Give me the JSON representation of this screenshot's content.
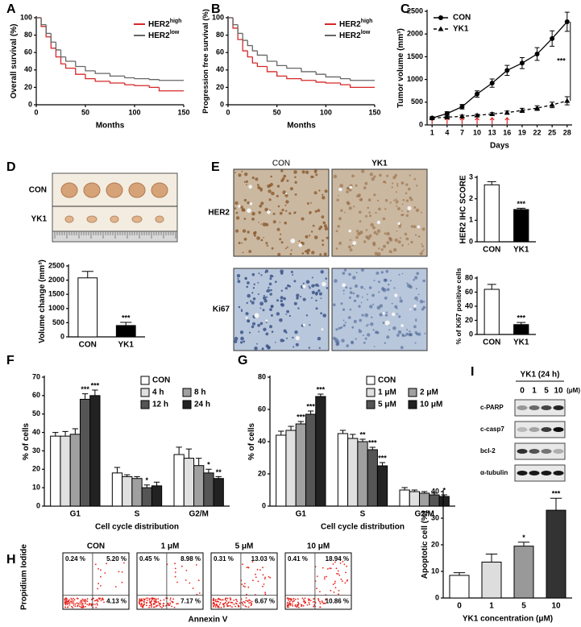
{
  "panel_labels": [
    "A",
    "B",
    "C",
    "D",
    "E",
    "F",
    "G",
    "H",
    "I"
  ],
  "chart_data": [
    {
      "type": "step",
      "x_label": "Months",
      "y_label": "Overall survival (%)",
      "xlim": [
        0,
        150
      ],
      "xticks": [
        0,
        50,
        100,
        150
      ],
      "ylim": [
        0,
        100
      ],
      "yticks": [
        0,
        20,
        40,
        60,
        80,
        100
      ],
      "legend": "upper right",
      "series": [
        {
          "name": "HER2",
          "name_sup": "high",
          "color": "#d62728",
          "x": [
            0,
            5,
            10,
            15,
            20,
            25,
            30,
            40,
            50,
            60,
            75,
            90,
            100,
            115,
            125,
            150
          ],
          "values": [
            100,
            90,
            78,
            65,
            55,
            47,
            42,
            35,
            30,
            27,
            25,
            23,
            22,
            20,
            16,
            16
          ]
        },
        {
          "name": "HER2",
          "name_sup": "low",
          "color": "#666666",
          "x": [
            0,
            5,
            10,
            15,
            20,
            25,
            30,
            40,
            50,
            60,
            75,
            90,
            100,
            115,
            125,
            150
          ],
          "values": [
            100,
            92,
            82,
            72,
            63,
            55,
            50,
            44,
            39,
            36,
            33,
            31,
            30,
            29,
            28,
            28
          ]
        }
      ]
    },
    {
      "type": "step",
      "x_label": "Months",
      "y_label": "Progression free survival (%)",
      "xlim": [
        0,
        150
      ],
      "xticks": [
        0,
        50,
        100,
        150
      ],
      "ylim": [
        0,
        100
      ],
      "yticks": [
        0,
        20,
        40,
        60,
        80,
        100
      ],
      "legend": "upper right",
      "series": [
        {
          "name": "HER2",
          "name_sup": "high",
          "color": "#d62728",
          "x": [
            0,
            5,
            10,
            15,
            20,
            25,
            30,
            40,
            50,
            60,
            75,
            90,
            100,
            115,
            125,
            150
          ],
          "values": [
            100,
            88,
            75,
            62,
            55,
            48,
            44,
            38,
            33,
            30,
            28,
            26,
            25,
            23,
            20,
            20
          ]
        },
        {
          "name": "HER2",
          "name_sup": "low",
          "color": "#666666",
          "x": [
            0,
            5,
            10,
            15,
            20,
            25,
            30,
            40,
            50,
            60,
            75,
            90,
            100,
            115,
            125,
            150
          ],
          "values": [
            100,
            92,
            82,
            74,
            68,
            62,
            57,
            50,
            45,
            42,
            38,
            35,
            32,
            30,
            28,
            28
          ]
        }
      ]
    },
    {
      "type": "line",
      "x_label": "Days",
      "y_label": "Tumor volume (mm³)",
      "xlim": [
        0,
        29
      ],
      "xticks": [
        1,
        4,
        7,
        10,
        13,
        16,
        19,
        22,
        25,
        28
      ],
      "ylim": [
        0,
        2500
      ],
      "yticks": [
        0,
        500,
        1000,
        1500,
        2000,
        2500
      ],
      "legend": "upper left",
      "dosing_days": [
        1,
        4,
        7,
        10,
        13,
        16
      ],
      "annotation": "***",
      "series": [
        {
          "name": "CON",
          "color": "#000000",
          "marker": "circle",
          "dash": false,
          "x": [
            1,
            4,
            7,
            10,
            13,
            16,
            19,
            22,
            25,
            28
          ],
          "values": [
            150,
            250,
            400,
            680,
            920,
            1200,
            1360,
            1560,
            1900,
            2270
          ],
          "errors": [
            30,
            40,
            50,
            70,
            90,
            110,
            120,
            140,
            170,
            210
          ]
        },
        {
          "name": "YK1",
          "color": "#000000",
          "marker": "triangle",
          "dash": true,
          "x": [
            1,
            4,
            7,
            10,
            13,
            16,
            19,
            22,
            25,
            28
          ],
          "values": [
            150,
            170,
            190,
            210,
            240,
            270,
            320,
            370,
            440,
            530
          ],
          "errors": [
            20,
            20,
            25,
            25,
            30,
            35,
            45,
            50,
            60,
            90
          ]
        }
      ]
    },
    {
      "type": "bar",
      "y_label": "Volume change (mm³)",
      "categories": [
        "CON",
        "YK1"
      ],
      "values": [
        2080,
        400
      ],
      "errors": [
        230,
        110
      ],
      "colors": [
        "#ffffff",
        "#000000"
      ],
      "significance": [
        null,
        "***"
      ],
      "ylim": [
        0,
        2500
      ],
      "yticks": [
        0,
        500,
        1000,
        1500,
        2000,
        2500
      ]
    },
    {
      "type": "bar",
      "y_label": "HER2 IHC SCORE",
      "categories": [
        "CON",
        "YK1"
      ],
      "values": [
        2.65,
        1.5
      ],
      "errors": [
        0.15,
        0.06
      ],
      "colors": [
        "#ffffff",
        "#000000"
      ],
      "significance": [
        null,
        "***"
      ],
      "ylim": [
        0,
        3
      ],
      "yticks": [
        0,
        1,
        2,
        3
      ]
    },
    {
      "type": "bar",
      "y_label": "% of Ki67 positive cells",
      "categories": [
        "CON",
        "YK1"
      ],
      "values": [
        64,
        14
      ],
      "errors": [
        7,
        3
      ],
      "colors": [
        "#ffffff",
        "#000000"
      ],
      "significance": [
        null,
        "***"
      ],
      "ylim": [
        0,
        80
      ],
      "yticks": [
        0,
        20,
        40,
        60,
        80
      ]
    },
    {
      "type": "bar",
      "x_label": "Cell cycle distribution",
      "y_label": "% of cells",
      "categories": [
        "G1",
        "S",
        "G2/M"
      ],
      "ylim": [
        0,
        70
      ],
      "yticks": [
        0,
        10,
        20,
        30,
        40,
        50,
        60,
        70
      ],
      "legend": "upper right",
      "series": [
        {
          "name": "CON",
          "color": "#ffffff",
          "values": [
            38,
            18,
            28
          ],
          "errors": [
            2,
            3,
            4
          ],
          "significance": [
            null,
            null,
            null
          ]
        },
        {
          "name": "4 h",
          "color": "#e0e0e0",
          "values": [
            38,
            16,
            26
          ],
          "errors": [
            2.5,
            1,
            5
          ],
          "significance": [
            null,
            null,
            null
          ]
        },
        {
          "name": "8 h",
          "color": "#a0a0a0",
          "values": [
            39,
            15,
            22
          ],
          "errors": [
            3,
            1,
            4
          ],
          "significance": [
            null,
            null,
            null
          ]
        },
        {
          "name": "12 h",
          "color": "#555555",
          "values": [
            58,
            10,
            18
          ],
          "errors": [
            3,
            1.5,
            2
          ],
          "significance": [
            "***",
            "*",
            "*"
          ]
        },
        {
          "name": "24 h",
          "color": "#222222",
          "values": [
            60,
            11,
            15
          ],
          "errors": [
            3,
            2,
            1
          ],
          "significance": [
            "***",
            null,
            "**"
          ]
        }
      ]
    },
    {
      "type": "bar",
      "x_label": "Cell cycle distribution",
      "y_label": "% of cells",
      "categories": [
        "G1",
        "S",
        "G2/M"
      ],
      "ylim": [
        0,
        80
      ],
      "yticks": [
        0,
        20,
        40,
        60,
        80
      ],
      "legend": "upper right",
      "series": [
        {
          "name": "CON",
          "color": "#ffffff",
          "values": [
            44,
            45,
            10
          ],
          "errors": [
            2.5,
            2,
            1.5
          ],
          "significance": [
            null,
            null,
            null
          ]
        },
        {
          "name": "1 μM",
          "color": "#e0e0e0",
          "values": [
            47,
            42,
            9
          ],
          "errors": [
            2.5,
            2.5,
            1
          ],
          "significance": [
            null,
            null,
            null
          ]
        },
        {
          "name": "2 μM",
          "color": "#a0a0a0",
          "values": [
            51,
            40,
            8
          ],
          "errors": [
            1.5,
            1.5,
            1
          ],
          "significance": [
            "***",
            "**",
            null
          ]
        },
        {
          "name": "5 μM",
          "color": "#555555",
          "values": [
            57,
            35,
            7
          ],
          "errors": [
            2,
            1.5,
            1
          ],
          "significance": [
            "***",
            "***",
            null
          ]
        },
        {
          "name": "10 μM",
          "color": "#222222",
          "values": [
            68,
            25,
            6
          ],
          "errors": [
            1.5,
            2,
            1
          ],
          "significance": [
            "***",
            "***",
            "*"
          ]
        }
      ]
    },
    {
      "type": "bar",
      "x_label": "YK1 concentration (μM)",
      "y_label": "Apoptotic cell (%)",
      "categories": [
        "0",
        "1",
        "5",
        "10"
      ],
      "values": [
        8.5,
        13.5,
        19.5,
        33
      ],
      "errors": [
        1,
        3,
        1.5,
        4.5
      ],
      "colors": [
        "#ffffff",
        "#dddddd",
        "#999999",
        "#333333"
      ],
      "significance": [
        null,
        null,
        "*",
        "***"
      ],
      "ylim": [
        0,
        40
      ],
      "yticks": [
        0,
        10,
        20,
        30,
        40
      ]
    }
  ],
  "tumor_photo": {
    "rows": [
      "CON",
      "YK1"
    ]
  },
  "ihc": {
    "columns": [
      "CON",
      "YK1"
    ],
    "rows": [
      "HER2",
      "Ki67"
    ]
  },
  "western_blot": {
    "title": "YK1 (24 h)",
    "unit": "(μM)",
    "lanes": [
      "0",
      "1",
      "5",
      "10"
    ],
    "rows": [
      "c-PARP",
      "c-casp7",
      "bcl-2",
      "α-tubulin"
    ]
  },
  "flow_cytometry": {
    "y_label": "Propidium Iodide",
    "x_label": "Annexin V",
    "plots": [
      {
        "title": "CON",
        "upper_left": "0.24 %",
        "upper_right": "5.20 %",
        "lower_right": "4.13 %"
      },
      {
        "title": "1 μM",
        "upper_left": "0.45 %",
        "upper_right": "8.98 %",
        "lower_right": "7.17 %"
      },
      {
        "title": "5 μM",
        "upper_left": "0.31 %",
        "upper_right": "13.03 %",
        "lower_right": "6.67 %"
      },
      {
        "title": "10 μM",
        "upper_left": "0.41 %",
        "upper_right": "18.94 %",
        "lower_right": "10.86 %"
      }
    ]
  }
}
